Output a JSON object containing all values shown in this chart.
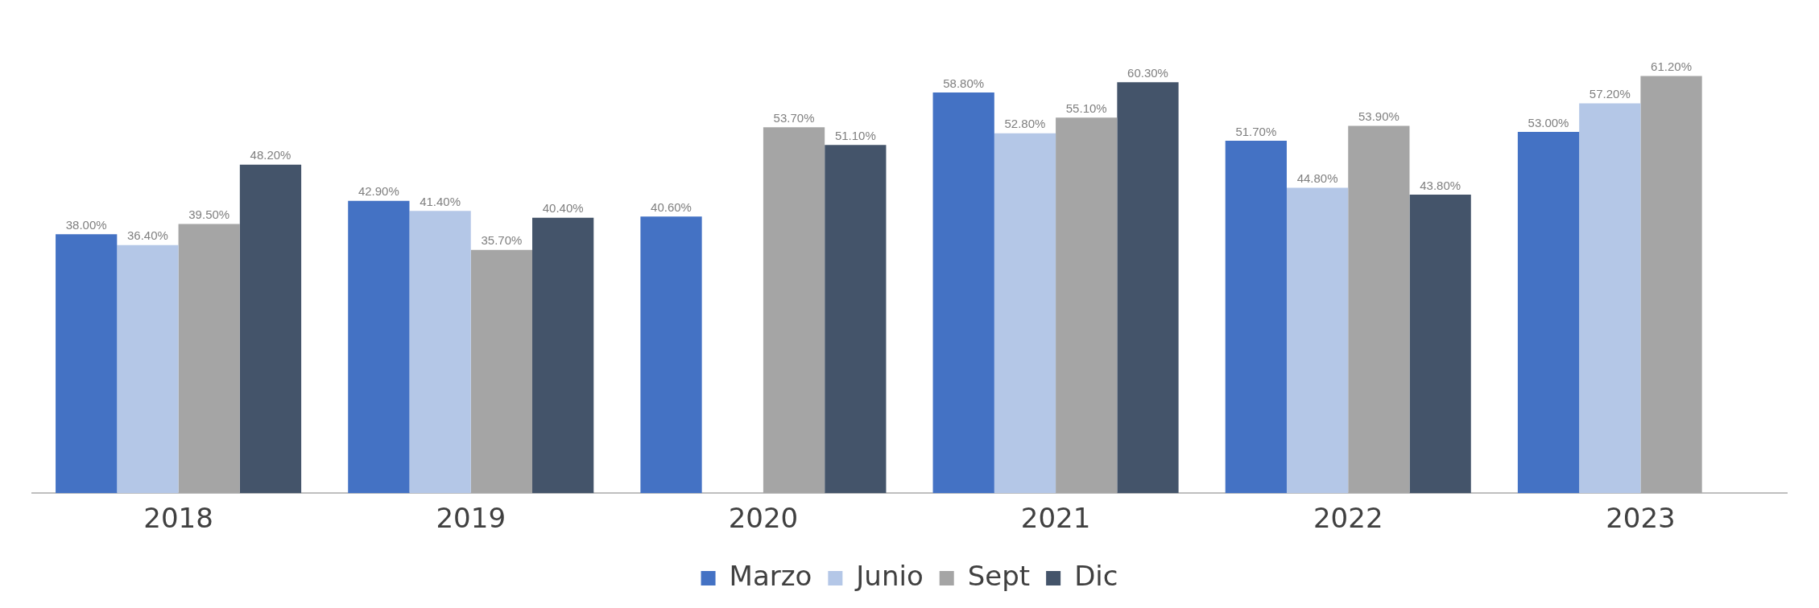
{
  "chart_data": {
    "type": "bar",
    "categories": [
      "2018",
      "2019",
      "2020",
      "2021",
      "2022",
      "2023"
    ],
    "tick_labels": "x",
    "grid": false,
    "legend": "bottom",
    "series": [
      {
        "name": "Marzo",
        "color": "#4472c4",
        "values": [
          38.0,
          42.9,
          40.6,
          58.8,
          51.7,
          53.0
        ],
        "value_labels": [
          "38.00%",
          "42.90%",
          "40.60%",
          "58.80%",
          "51.70%",
          "53.00%"
        ]
      },
      {
        "name": "Junio",
        "color": "#b4c7e7",
        "values": [
          36.4,
          41.4,
          null,
          52.8,
          44.8,
          57.2
        ],
        "value_labels": [
          "36.40%",
          "41.40%",
          null,
          "52.80%",
          "44.80%",
          "57.20%"
        ]
      },
      {
        "name": "Sept",
        "color": "#a5a5a5",
        "values": [
          39.5,
          35.7,
          53.7,
          55.1,
          53.9,
          61.2
        ],
        "value_labels": [
          "39.50%",
          "35.70%",
          "53.70%",
          "55.10%",
          "53.90%",
          "61.20%"
        ]
      },
      {
        "name": "Dic",
        "color": "#44546a",
        "values": [
          48.2,
          40.4,
          51.1,
          60.3,
          43.8,
          null
        ],
        "value_labels": [
          "48.20%",
          "40.40%",
          "51.10%",
          "60.30%",
          "43.80%",
          null
        ]
      }
    ]
  }
}
